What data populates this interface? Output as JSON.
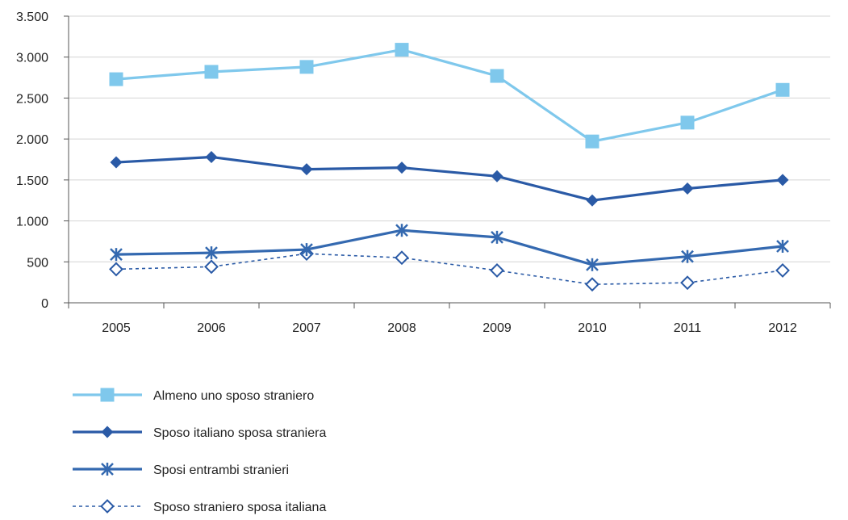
{
  "chart_data": {
    "type": "line",
    "categories": [
      "2005",
      "2006",
      "2007",
      "2008",
      "2009",
      "2010",
      "2011",
      "2012"
    ],
    "ylim": [
      0,
      3500
    ],
    "yticks": [
      0,
      500,
      1000,
      1500,
      2000,
      2500,
      3000,
      3500
    ],
    "ytick_labels": [
      "0",
      "500",
      "1.000",
      "1.500",
      "2.000",
      "2.500",
      "3.000",
      "3.500"
    ],
    "grid": true,
    "legend_position": "bottom-left",
    "series": [
      {
        "name": "Almeno uno sposo straniero",
        "values": [
          2730,
          2820,
          2880,
          3090,
          2770,
          1970,
          2200,
          2600
        ],
        "color": "#7FC8EC",
        "marker": "square",
        "line_style": "solid"
      },
      {
        "name": "Sposo italiano sposa straniera",
        "values": [
          1715,
          1780,
          1630,
          1650,
          1545,
          1250,
          1395,
          1500
        ],
        "color": "#2A5AA6",
        "marker": "diamond",
        "line_style": "solid"
      },
      {
        "name": "Sposi entrambi stranieri",
        "values": [
          590,
          610,
          650,
          885,
          800,
          465,
          565,
          690
        ],
        "color": "#3469B0",
        "marker": "asterisk",
        "line_style": "solid"
      },
      {
        "name": "Sposo straniero sposa italiana",
        "values": [
          410,
          440,
          600,
          550,
          395,
          225,
          245,
          395
        ],
        "color": "#2A5AA6",
        "marker": "diamond-open",
        "line_style": "dotted"
      }
    ]
  }
}
